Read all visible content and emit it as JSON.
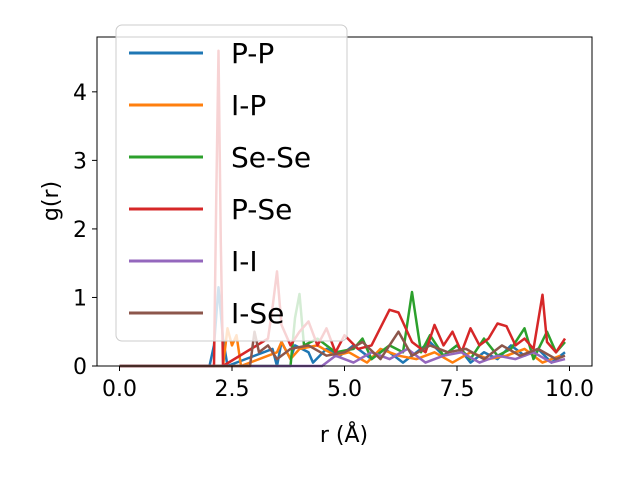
{
  "chart_data": {
    "type": "line",
    "xlabel": "r (Å)",
    "ylabel": "g(r)",
    "xlim": [
      -0.5,
      10.5
    ],
    "ylim": [
      0,
      4.8
    ],
    "xticks": [
      "0.0",
      "2.5",
      "5.0",
      "7.5",
      "10.0"
    ],
    "yticks": [
      "0",
      "1",
      "2",
      "3",
      "4"
    ],
    "legend_position": "upper-left",
    "grid": false,
    "series": [
      {
        "name": "P-P",
        "color": "#1f77b4",
        "x": [
          0,
          2.0,
          2.1,
          2.2,
          2.3,
          2.4,
          3.4,
          3.5,
          3.6,
          3.8,
          3.9,
          4.2,
          4.3,
          4.6,
          4.9,
          5.2,
          5.6,
          5.9,
          6.3,
          6.6,
          6.9,
          7.2,
          7.5,
          7.8,
          8.1,
          8.4,
          8.7,
          9.0,
          9.3,
          9.6,
          9.9
        ],
        "y": [
          0,
          0,
          0.3,
          1.15,
          0.4,
          0,
          0.25,
          0,
          0.35,
          0.1,
          0.3,
          0.2,
          0.05,
          0.25,
          0.15,
          0.3,
          0.1,
          0.25,
          0.05,
          0.2,
          0.35,
          0.15,
          0.3,
          0.05,
          0.2,
          0.1,
          0.3,
          0.15,
          0.25,
          0.05,
          0.2
        ]
      },
      {
        "name": "I-P",
        "color": "#ff7f0e",
        "x": [
          0,
          2.3,
          2.4,
          2.5,
          2.6,
          2.7,
          3.5,
          3.6,
          3.8,
          4.0,
          4.4,
          4.8,
          5.1,
          5.5,
          5.8,
          6.2,
          6.6,
          7.0,
          7.4,
          7.8,
          8.2,
          8.6,
          9.0,
          9.4,
          9.8
        ],
        "y": [
          0,
          0,
          0.55,
          0.3,
          0.45,
          0,
          0.2,
          0.35,
          0.1,
          0.25,
          0.3,
          0.15,
          0.2,
          0.05,
          0.25,
          0.15,
          0.1,
          0.2,
          0.05,
          0.2,
          0.1,
          0.15,
          0.25,
          0.05,
          0.15
        ]
      },
      {
        "name": "Se-Se",
        "color": "#2ca02c",
        "x": [
          0,
          3.8,
          3.9,
          4.0,
          4.1,
          4.4,
          4.8,
          5.2,
          5.4,
          5.6,
          6.0,
          6.3,
          6.5,
          6.7,
          6.9,
          7.2,
          7.5,
          7.8,
          8.1,
          8.4,
          8.7,
          9.0,
          9.2,
          9.5,
          9.7,
          9.9
        ],
        "y": [
          0,
          0,
          0.7,
          1.05,
          0.3,
          0.4,
          0.2,
          0.25,
          0.4,
          0.1,
          0.3,
          0.2,
          1.08,
          0.2,
          0.45,
          0.15,
          0.3,
          0.1,
          0.4,
          0.15,
          0.25,
          0.55,
          0.1,
          0.5,
          0.2,
          0.35
        ]
      },
      {
        "name": "P-Se",
        "color": "#d62728",
        "x": [
          0,
          2.1,
          2.15,
          2.2,
          2.25,
          2.3,
          3.3,
          3.4,
          3.5,
          3.6,
          3.8,
          4.0,
          4.2,
          4.4,
          4.6,
          4.8,
          5.0,
          5.3,
          5.6,
          6.0,
          6.2,
          6.5,
          6.8,
          7.0,
          7.2,
          7.4,
          7.6,
          7.8,
          8.0,
          8.2,
          8.4,
          8.6,
          8.8,
          9.0,
          9.2,
          9.4,
          9.5,
          9.7,
          9.9
        ],
        "y": [
          0,
          0,
          2.5,
          4.6,
          1.8,
          0,
          0.4,
          0.85,
          1.38,
          0.6,
          0.3,
          0.5,
          0.65,
          0.3,
          0.55,
          0.2,
          0.45,
          0.25,
          0.3,
          0.82,
          0.78,
          0.35,
          0.2,
          0.6,
          0.3,
          0.5,
          0.2,
          0.55,
          0.3,
          0.4,
          0.62,
          0.58,
          0.3,
          0.4,
          0.25,
          1.04,
          0.35,
          0.2,
          0.4
        ]
      },
      {
        "name": "I-I",
        "color": "#9467bd",
        "x": [
          0,
          4.5,
          4.8,
          5.2,
          5.6,
          6.0,
          6.4,
          6.8,
          7.2,
          7.6,
          8.0,
          8.4,
          8.8,
          9.2,
          9.6,
          9.9
        ],
        "y": [
          0,
          0,
          0.15,
          0.05,
          0.2,
          0.1,
          0.25,
          0.05,
          0.15,
          0.2,
          0.05,
          0.15,
          0.1,
          0.2,
          0.05,
          0.1
        ]
      },
      {
        "name": "I-Se",
        "color": "#8c564b",
        "x": [
          0,
          2.9,
          3.0,
          3.1,
          3.3,
          3.5,
          3.8,
          4.2,
          4.6,
          5.0,
          5.4,
          5.8,
          6.2,
          6.5,
          6.9,
          7.3,
          7.7,
          8.1,
          8.5,
          8.9,
          9.3,
          9.7,
          9.9
        ],
        "y": [
          0,
          0,
          0.5,
          0.2,
          0.3,
          0.1,
          0.25,
          0.3,
          0.15,
          0.2,
          0.35,
          0.1,
          0.5,
          0.15,
          0.3,
          0.2,
          0.25,
          0.1,
          0.3,
          0.15,
          0.25,
          0.1,
          0.15
        ]
      }
    ]
  }
}
